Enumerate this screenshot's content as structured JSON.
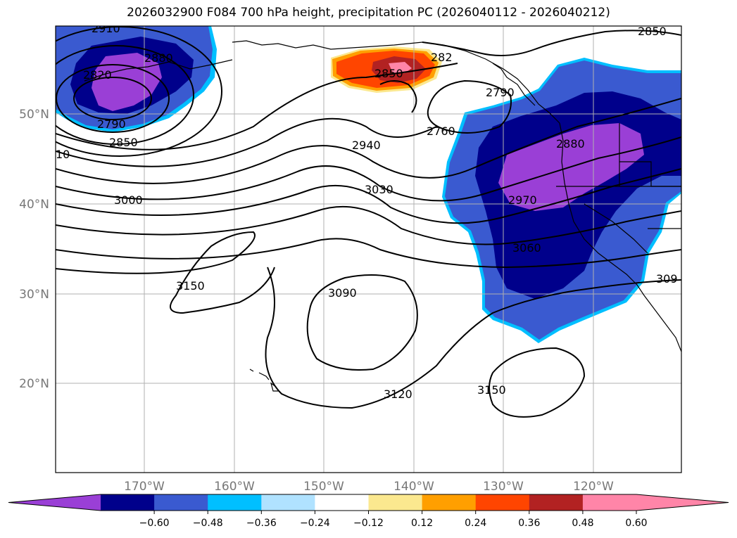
{
  "title": "2026032900 F084 700 hPa height, precipitation PC (2026040112 - 2026040212)",
  "map": {
    "lon_ticks": [
      "170°W",
      "160°W",
      "150°W",
      "140°W",
      "130°W",
      "120°W"
    ],
    "lat_ticks": [
      "50°N",
      "40°N",
      "30°N",
      "20°N"
    ],
    "contour_labels": [
      "2910",
      "2880",
      "2820",
      "2790",
      "2850",
      "10",
      "3000",
      "3150",
      "2850",
      "282",
      "2790",
      "2760",
      "2940",
      "3030",
      "3090",
      "3120",
      "3150",
      "2880",
      "2970",
      "3060",
      "309",
      "2850"
    ]
  },
  "colorbar": {
    "ticks": [
      "−0.60",
      "−0.48",
      "−0.36",
      "−0.24",
      "−0.12",
      "0.12",
      "0.24",
      "0.36",
      "0.48",
      "0.60"
    ],
    "colors": [
      "#9a3fd6",
      "#00008b",
      "#3a5ad0",
      "#00bfff",
      "#b0e2ff",
      "#ffffff",
      "#fbe88f",
      "#ff9f00",
      "#ff4500",
      "#b22222",
      "#ff85a8",
      "#ff85a8"
    ]
  }
}
